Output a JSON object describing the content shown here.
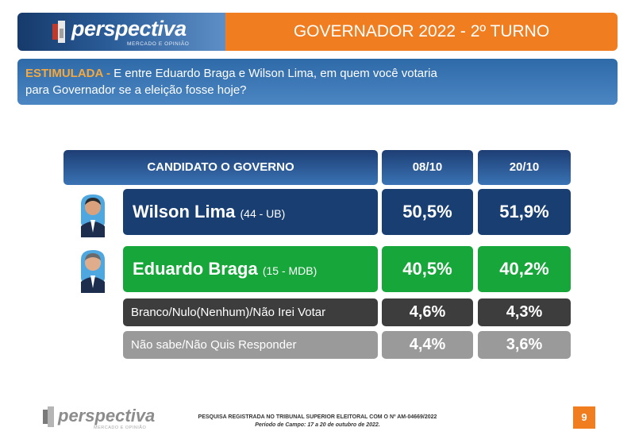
{
  "header": {
    "logo_text": "perspectiva",
    "logo_subtext": "MERCADO E OPINIÃO",
    "title": "GOVERNADOR 2022 - 2º TURNO"
  },
  "question": {
    "keyword": "ESTIMULADA -",
    "text": " E entre Eduardo Braga e Wilson Lima, em quem você votaria para Governador se a eleição fosse hoje?"
  },
  "chart_data": {
    "type": "table",
    "columns": [
      "CANDIDATO O GOVERNO",
      "08/10",
      "20/10"
    ],
    "rows": [
      {
        "name": "Wilson Lima",
        "party": "(44 - UB)",
        "values": [
          "50,5%",
          "51,9%"
        ]
      },
      {
        "name": "Eduardo Braga",
        "party": "(15 - MDB)",
        "values": [
          "40,5%",
          "40,2%"
        ]
      },
      {
        "name": "Branco/Nulo(Nenhum)/Não Irei Votar",
        "party": "",
        "values": [
          "4,6%",
          "4,3%"
        ]
      },
      {
        "name": "Não sabe/Não Quis Responder",
        "party": "",
        "values": [
          "4,4%",
          "3,6%"
        ]
      }
    ]
  },
  "colors": {
    "accent_orange": "#f07d1f",
    "row_blue": "#183e72",
    "row_green": "#17a63a",
    "row_dark_gray": "#3d3d3d",
    "row_light_gray": "#9a9a9a"
  },
  "footer": {
    "logo_text": "perspectiva",
    "logo_subtext": "MERCADO E OPINIÃO",
    "registration": "PESQUISA REGISTRADA NO TRIBUNAL SUPERIOR ELEITORAL COM O Nº AM-04669/2022",
    "period": "Período de Campo: 17 a 20 de outubro de 2022.",
    "page_number": "9"
  }
}
